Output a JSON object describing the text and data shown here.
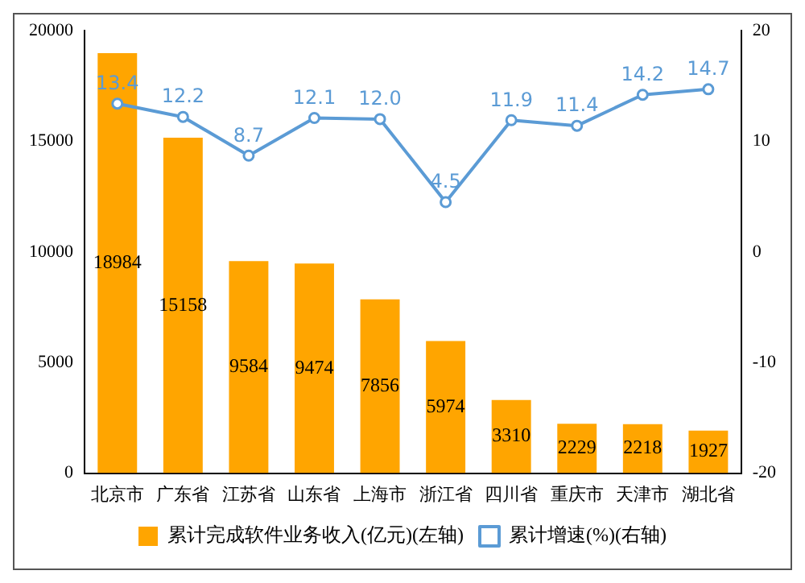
{
  "chart_data": {
    "type": "bar",
    "categories": [
      "北京市",
      "广东省",
      "江苏省",
      "山东省",
      "上海市",
      "浙江省",
      "四川省",
      "重庆市",
      "天津市",
      "湖北省"
    ],
    "series": [
      {
        "name": "累计完成软件业务收入(亿元)(左轴)",
        "color": "#ffa500",
        "values": [
          18984,
          15158,
          9584,
          9474,
          7856,
          5974,
          3310,
          2229,
          2218,
          1927
        ]
      },
      {
        "name": "累计增速(%)(右轴)",
        "type": "line",
        "axis": "y2",
        "color": "#5b9bd5",
        "values": [
          13.4,
          12.2,
          8.7,
          12.1,
          12.0,
          4.5,
          11.9,
          11.4,
          14.2,
          14.7
        ],
        "value_labels": [
          "13.4",
          "12.2",
          "8.7",
          "12.1",
          "12.0",
          "4.5",
          "11.9",
          "11.4",
          "14.2",
          "14.7"
        ]
      }
    ],
    "ylim": [
      0,
      20000
    ],
    "yticks": [
      0,
      5000,
      10000,
      15000,
      20000
    ],
    "y2lim": [
      -20,
      20
    ],
    "y2ticks": [
      -20,
      -10,
      0,
      10,
      20
    ],
    "data_labels": true,
    "legend": "bottom",
    "grid": false,
    "marker": "circle"
  }
}
